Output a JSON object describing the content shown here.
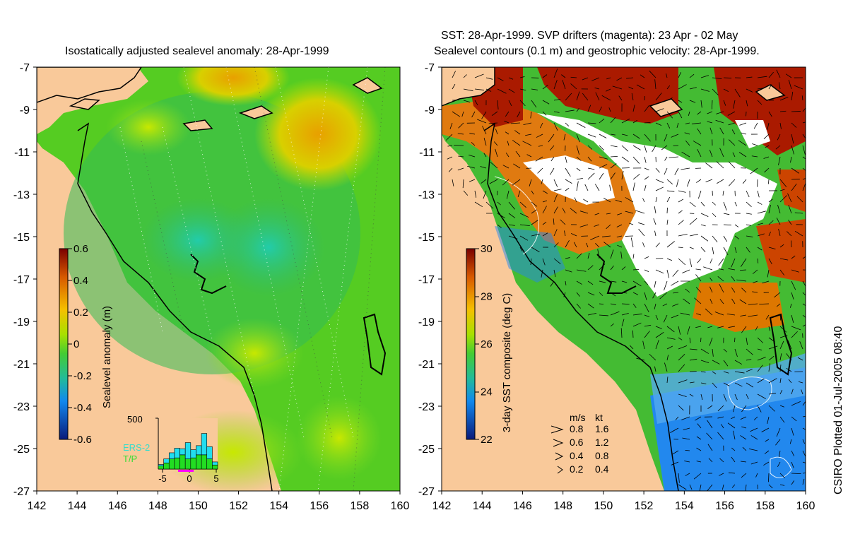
{
  "left_panel": {
    "title": "Isostatically adjusted sealevel anomaly: 28-Apr-1999",
    "colorbar": {
      "label": "Sealevel anomaly (m)",
      "ticks": [
        "0.6",
        "0.4",
        "0.2",
        "0",
        "-0.2",
        "-0.4",
        "-0.6"
      ]
    },
    "histogram": {
      "ymax_label": "500",
      "x_ticks": [
        "-5",
        "0",
        "5"
      ],
      "legend": [
        "ERS-2",
        "T/P"
      ],
      "tp_values": [
        30,
        60,
        100,
        110,
        140,
        100,
        110,
        140,
        140,
        100,
        40
      ],
      "ers_values": [
        15,
        40,
        60,
        95,
        60,
        160,
        80,
        90,
        210,
        120,
        30
      ],
      "colors": {
        "tp": "#22dd22",
        "ers": "#22ddee",
        "legend_ers": "#33ddcc",
        "legend_tp": "#33dd33"
      }
    }
  },
  "right_panel": {
    "title_line1": "SST: 28-Apr-1999. SVP drifters (magenta): 23 Apr - 02 May",
    "title_line2": "Sealevel contours (0.1 m) and geostrophic velocity: 28-Apr-1999.",
    "colorbar": {
      "label": "3-day SST composite (deg C)",
      "ticks": [
        "30",
        "28",
        "26",
        "24",
        "22"
      ]
    },
    "velocity_key": {
      "header_ms": "m/s",
      "header_kt": "kt",
      "rows": [
        {
          "ms": "0.8",
          "kt": "1.6"
        },
        {
          "ms": "0.6",
          "kt": "1.2"
        },
        {
          "ms": "0.4",
          "kt": "0.8"
        },
        {
          "ms": "0.2",
          "kt": "0.4"
        }
      ]
    }
  },
  "axes": {
    "x_ticks": [
      "142",
      "144",
      "146",
      "148",
      "150",
      "152",
      "154",
      "156",
      "158",
      "160"
    ],
    "y_ticks": [
      "-7",
      "-9",
      "-11",
      "-13",
      "-15",
      "-17",
      "-19",
      "-21",
      "-23",
      "-25",
      "-27"
    ],
    "lon_range": [
      142,
      160
    ],
    "lat_range": [
      -27,
      -7
    ]
  },
  "side_label": "CSIRO Plotted 01-Jul-2005 08:40",
  "colors": {
    "land": "#f9c99a",
    "ocean_green": "#55cc22",
    "ocean_yellow": "#b8e000",
    "ocean_teal": "#22bb77",
    "sst_red": "#aa1a00",
    "sst_orange": "#e07a10",
    "sst_blue": "#2288ee"
  }
}
